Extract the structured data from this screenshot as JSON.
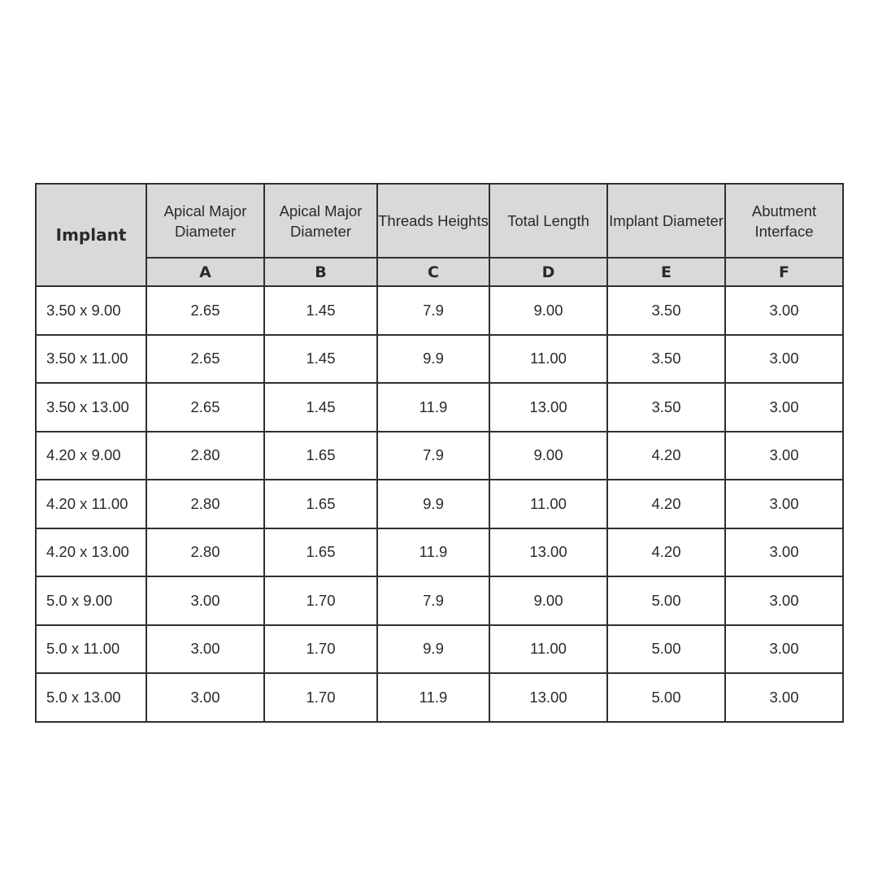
{
  "table": {
    "corner_header": "Implant",
    "columns": [
      {
        "title": "Apical Major Diameter",
        "letter": "A"
      },
      {
        "title": "Apical Major Diameter",
        "letter": "B"
      },
      {
        "title": "Threads Heights",
        "letter": "C"
      },
      {
        "title": "Total Length",
        "letter": "D"
      },
      {
        "title": "Implant Diameter",
        "letter": "E"
      },
      {
        "title": "Abutment Interface",
        "letter": "F"
      }
    ],
    "rows": [
      [
        "3.50 x 9.00",
        "2.65",
        "1.45",
        "7.9",
        "9.00",
        "3.50",
        "3.00"
      ],
      [
        "3.50 x 11.00",
        "2.65",
        "1.45",
        "9.9",
        "11.00",
        "3.50",
        "3.00"
      ],
      [
        "3.50 x 13.00",
        "2.65",
        "1.45",
        "11.9",
        "13.00",
        "3.50",
        "3.00"
      ],
      [
        "4.20 x 9.00",
        "2.80",
        "1.65",
        "7.9",
        "9.00",
        "4.20",
        "3.00"
      ],
      [
        "4.20 x 11.00",
        "2.80",
        "1.65",
        "9.9",
        "11.00",
        "4.20",
        "3.00"
      ],
      [
        "4.20 x 13.00",
        "2.80",
        "1.65",
        "11.9",
        "13.00",
        "4.20",
        "3.00"
      ],
      [
        "5.0 x 9.00",
        "3.00",
        "1.70",
        "7.9",
        "9.00",
        "5.00",
        "3.00"
      ],
      [
        "5.0 x 11.00",
        "3.00",
        "1.70",
        "9.9",
        "11.00",
        "5.00",
        "3.00"
      ],
      [
        "5.0 x 13.00",
        "3.00",
        "1.70",
        "11.9",
        "13.00",
        "5.00",
        "3.00"
      ]
    ]
  }
}
